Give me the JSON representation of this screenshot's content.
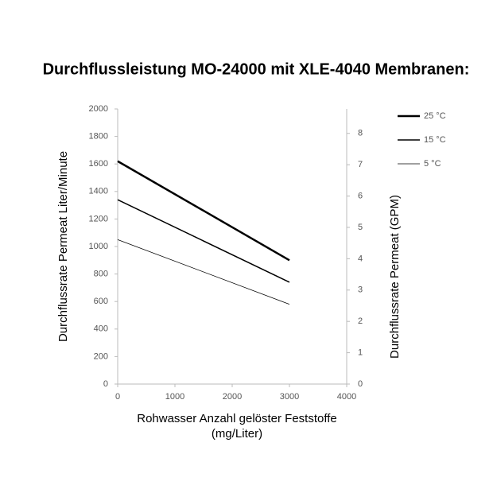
{
  "chart_data": {
    "type": "line",
    "title": "Durchflussleistung MO-24000 mit XLE-4040 Membranen:",
    "xlabel": [
      "Rohwasser Anzahl gelöster Feststoffe",
      "(mg/Liter)"
    ],
    "ylabel": "Durchflussrate Permeat Liter/Minute",
    "y2label": "Durchflussrate Permeat (GPM)",
    "x": [
      0,
      3000
    ],
    "series": [
      {
        "name": "25 °C",
        "color": "#000000",
        "values": [
          1620,
          900
        ]
      },
      {
        "name": "15 °C",
        "color": "#000000",
        "values": [
          1340,
          740
        ]
      },
      {
        "name": "5 °C",
        "color": "#000000",
        "values": [
          1050,
          580
        ]
      }
    ],
    "xlim": [
      0,
      4000
    ],
    "xticks": [
      0,
      1000,
      2000,
      3000,
      4000
    ],
    "ylim": [
      0,
      2000
    ],
    "yticks": [
      0,
      200,
      400,
      600,
      800,
      1000,
      1200,
      1400,
      1600,
      1800,
      2000
    ],
    "y2lim": [
      0,
      8.78
    ],
    "y2ticks": [
      0,
      1,
      2,
      3,
      4,
      5,
      6,
      7,
      8
    ],
    "legend": "right"
  }
}
